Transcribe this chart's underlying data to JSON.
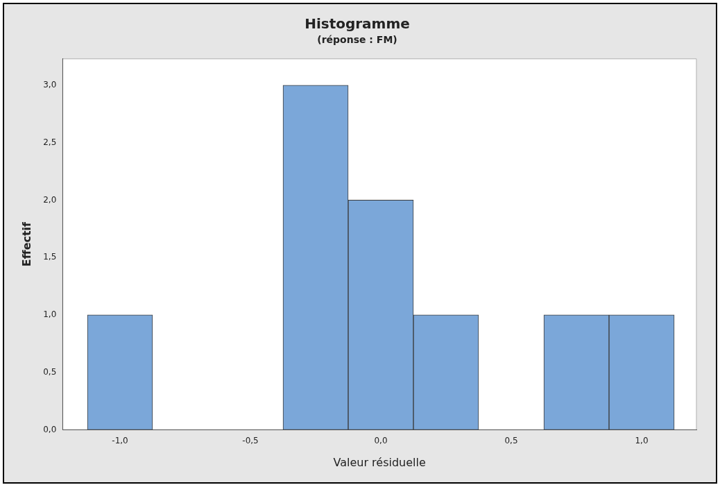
{
  "chart_data": {
    "type": "histogram",
    "title": "Histogramme",
    "subtitle": "(réponse : FM)",
    "xlabel": "Valeur résiduelle",
    "ylabel": "Effectif",
    "bins": [
      -1.125,
      -0.875,
      -0.625,
      -0.375,
      -0.125,
      0.125,
      0.375,
      0.625,
      0.875,
      1.125
    ],
    "values": [
      1,
      0,
      0,
      3,
      2,
      1,
      0,
      1,
      1
    ],
    "color": "#7ba7d9",
    "xlim": [
      -1.22,
      1.21
    ],
    "xticks": [
      {
        "value": -1,
        "label": "-1,0"
      },
      {
        "value": -0.5,
        "label": "-0,5"
      },
      {
        "value": 0,
        "label": "0,0"
      },
      {
        "value": 0.5,
        "label": "0,5"
      },
      {
        "value": 1,
        "label": "1,0"
      }
    ],
    "ylim": [
      0,
      3.23
    ],
    "yticks": [
      {
        "value": 0,
        "label": "0,0"
      },
      {
        "value": 0.5,
        "label": "0,5"
      },
      {
        "value": 1,
        "label": "1,0"
      },
      {
        "value": 1.5,
        "label": "1,5"
      },
      {
        "value": 2,
        "label": "2,0"
      },
      {
        "value": 2.5,
        "label": "2,5"
      },
      {
        "value": 3,
        "label": "3,0"
      }
    ],
    "grid": false,
    "legend": false
  }
}
